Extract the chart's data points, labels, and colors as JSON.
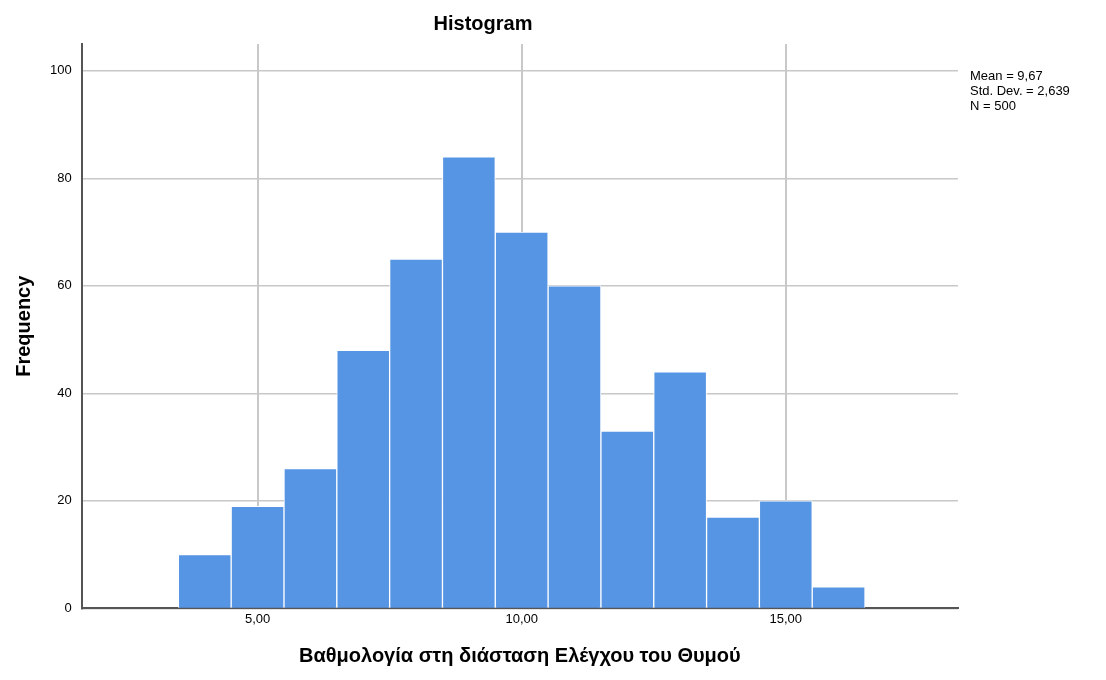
{
  "chart_data": {
    "type": "histogram",
    "title": "Histogram",
    "xlabel": "Βαθμολογία στη διάσταση Ελέγχου του Θυμού",
    "ylabel": "Frequency",
    "bins": [
      3.5,
      4.5,
      5.5,
      6.5,
      7.5,
      8.5,
      9.5,
      10.5,
      11.5,
      12.5,
      13.5,
      14.5,
      15.5,
      16.5
    ],
    "values": [
      10,
      19,
      26,
      48,
      65,
      84,
      70,
      60,
      33,
      44,
      17,
      20,
      4
    ],
    "color": "#5595e3",
    "xlim": [
      1.67,
      18.26
    ],
    "xticks": [
      {
        "value": 5,
        "label": "5,00"
      },
      {
        "value": 10,
        "label": "10,00"
      },
      {
        "value": 15,
        "label": "15,00"
      }
    ],
    "ylim": [
      0,
      105
    ],
    "yticks": [
      0,
      20,
      40,
      60,
      80,
      100
    ],
    "grid": true,
    "annotations": [
      "Mean = 9,67",
      "Std. Dev. = 2,639",
      "N = 500"
    ]
  }
}
